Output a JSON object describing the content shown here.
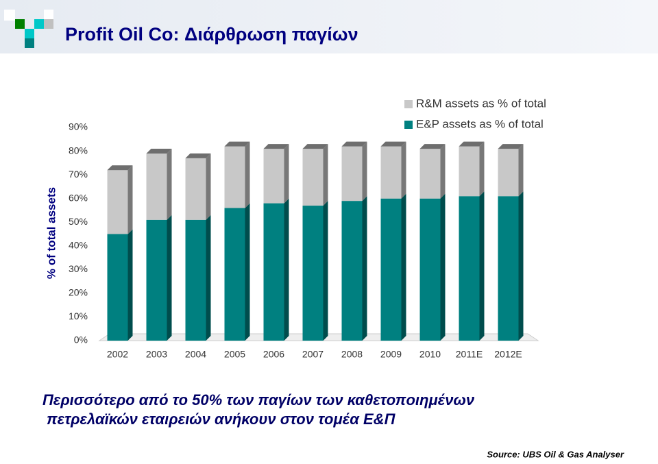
{
  "slide": {
    "title": "Profit Oil Co: Διάρθρωση παγίων",
    "caption": [
      "Περισσότερο από το 50% των παγίων των καθετοποιημένων",
      "πετρελαϊκών εταιρειών ανήκουν στον τομέα Ε&Π"
    ],
    "source": "Source: UBS Oil & Gas Analyser"
  },
  "chart_data": {
    "type": "bar",
    "stacked": true,
    "y_label": "% of total assets",
    "categories": [
      "2002",
      "2003",
      "2004",
      "2005",
      "2006",
      "2007",
      "2008",
      "2009",
      "2010",
      "2011E",
      "2012E"
    ],
    "series": [
      {
        "name": "E&P assets as % of total",
        "color": "#008080",
        "values": [
          45,
          51,
          51,
          56,
          58,
          57,
          59,
          60,
          60,
          61,
          61
        ]
      },
      {
        "name": "R&M assets as % of total",
        "color": "#c8c8c8",
        "values": [
          27,
          28,
          26,
          26,
          23,
          24,
          23,
          22,
          21,
          21,
          20
        ]
      }
    ],
    "ylim": [
      0,
      90
    ],
    "yticks": [
      {
        "value": 0,
        "label": "0%"
      },
      {
        "value": 10,
        "label": "10%"
      },
      {
        "value": 20,
        "label": "20%"
      },
      {
        "value": 30,
        "label": "30%"
      },
      {
        "value": 40,
        "label": "40%"
      },
      {
        "value": 50,
        "label": "50%"
      },
      {
        "value": 60,
        "label": "60%"
      },
      {
        "value": 70,
        "label": "70%"
      },
      {
        "value": 80,
        "label": "80%"
      },
      {
        "value": 90,
        "label": "90%"
      }
    ]
  }
}
